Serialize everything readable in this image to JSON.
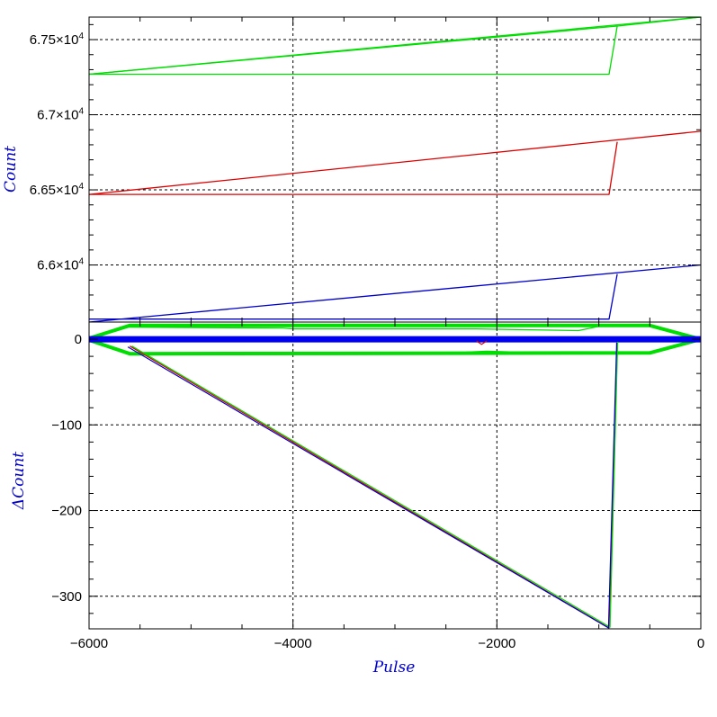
{
  "colors": {
    "axis_title": "#0000cc",
    "grid": "#000000",
    "frame": "#000000"
  },
  "chart_data": [
    {
      "type": "line",
      "panel": "upper",
      "ylabel": "Count",
      "xlim": [
        -6000,
        0
      ],
      "ylim": [
        65620,
        67650
      ],
      "x_ticks": [
        -6000,
        -4000,
        -2000,
        0
      ],
      "y_ticks": [
        {
          "value": 66000,
          "mantissa": "6.6",
          "exp": "4"
        },
        {
          "value": 66500,
          "mantissa": "6.65",
          "exp": "4"
        },
        {
          "value": 67000,
          "mantissa": "6.7",
          "exp": "4"
        },
        {
          "value": 67500,
          "mantissa": "6.75",
          "exp": "4"
        }
      ],
      "grid": true,
      "series": [
        {
          "color": "#00dd00",
          "points": [
            [
              -6000,
              67270
            ],
            [
              0,
              67650
            ]
          ]
        },
        {
          "color": "#00dd00",
          "points": [
            [
              -6000,
              67270
            ],
            [
              -900,
              67270
            ],
            [
              -820,
              67590
            ],
            [
              0,
              67650
            ]
          ]
        },
        {
          "color": "#00dd00",
          "points": [
            [
              -6000,
              67270
            ],
            [
              -820,
              67590
            ]
          ]
        },
        {
          "color": "#dd0000",
          "points": [
            [
              -6000,
              66470
            ],
            [
              0,
              66890
            ]
          ]
        },
        {
          "color": "#dd0000",
          "points": [
            [
              -6000,
              66470
            ],
            [
              -900,
              66470
            ],
            [
              -820,
              66820
            ]
          ]
        },
        {
          "color": "#0000cc",
          "points": [
            [
              -6000,
              65620
            ],
            [
              0,
              66000
            ]
          ]
        },
        {
          "color": "#0000cc",
          "points": [
            [
              -6000,
              65640
            ],
            [
              -900,
              65640
            ],
            [
              -820,
              65940
            ]
          ]
        }
      ]
    },
    {
      "type": "line",
      "panel": "lower",
      "xlabel": "Pulse",
      "ylabel": "ΔCount",
      "xlim": [
        -6000,
        0
      ],
      "ylim": [
        -338,
        20
      ],
      "x_ticks": [
        -6000,
        -4000,
        -2000,
        0
      ],
      "x_tick_labels": [
        "−6000",
        "−4000",
        "−2000",
        "0"
      ],
      "y_ticks": [
        0,
        -100,
        -200,
        -300
      ],
      "y_tick_labels": [
        "0",
        "−100",
        "−200",
        "−300"
      ],
      "grid": true,
      "series": [
        {
          "color": "#00dd00",
          "width": 4,
          "points": [
            [
              -6000,
              1
            ],
            [
              -5600,
              16
            ],
            [
              -500,
              16
            ],
            [
              0,
              0
            ],
            [
              -500,
              -16
            ],
            [
              -5600,
              -17
            ],
            [
              -6000,
              -1
            ]
          ]
        },
        {
          "color": "#00dd00",
          "width": 1.2,
          "points": [
            [
              -5700,
              14
            ],
            [
              -4100,
              13
            ],
            [
              -4000,
              12
            ],
            [
              -2200,
              12
            ],
            [
              -1200,
              10
            ],
            [
              -1000,
              15
            ]
          ]
        },
        {
          "color": "#00dd00",
          "width": 1.2,
          "points": [
            [
              -2300,
              -15
            ],
            [
              -2100,
              -14
            ],
            [
              -1800,
              -15
            ]
          ]
        },
        {
          "color": "#0000ee",
          "width": 7,
          "points": [
            [
              -6000,
              0
            ],
            [
              0,
              0
            ]
          ]
        },
        {
          "color": "#dd0000",
          "width": 1.2,
          "points": [
            [
              -2200,
              -2
            ],
            [
              -2150,
              -6
            ],
            [
              -2100,
              -2
            ]
          ]
        },
        {
          "color": "#dd0000",
          "width": 1.2,
          "points": [
            [
              -5600,
              -8
            ],
            [
              -900,
              -337
            ],
            [
              -820,
              -4
            ]
          ]
        },
        {
          "color": "#00dd00",
          "width": 1.2,
          "points": [
            [
              -5580,
              -8
            ],
            [
              -890,
              -336
            ],
            [
              -815,
              -3
            ]
          ]
        },
        {
          "color": "#0000cc",
          "width": 1.2,
          "points": [
            [
              -5620,
              -9
            ],
            [
              -905,
              -337
            ],
            [
              -825,
              -4
            ]
          ]
        }
      ]
    }
  ]
}
